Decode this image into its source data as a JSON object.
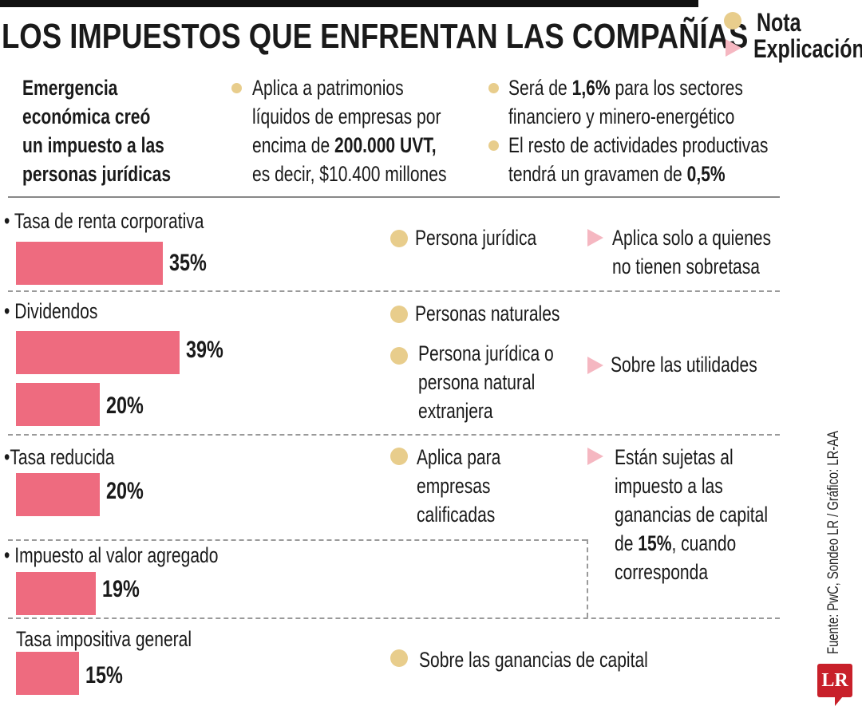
{
  "title": "LOS IMPUESTOS QUE ENFRENTAN LAS COMPAÑÍAS",
  "legend": {
    "note": "Nota",
    "explanation": "Explicación",
    "note_color": "#e8cd8c",
    "explanation_color": "#f5b7c1"
  },
  "intro": {
    "heading": [
      "Emergencia",
      "económica creó",
      "un impuesto a las",
      "personas jurídicas"
    ],
    "col2": {
      "l1": "Aplica a patrimonios",
      "l2": "líquidos de empresas por",
      "l3a": "encima de ",
      "l3b": "200.000 UVT,",
      "l4": "es decir, $10.400 millones"
    },
    "col3": {
      "l1a": "Será de ",
      "l1b": "1,6%",
      "l1c": " para los sectores",
      "l2": "financiero y minero-energético",
      "l3": "El resto de actividades productivas",
      "l4a": "tendrá un gravamen de ",
      "l4b": "0,5%"
    }
  },
  "rows": {
    "r1": {
      "label": "Tasa de renta corporativa",
      "note": "Persona jurídica",
      "expl": [
        "Aplica solo a quienes",
        "no tienen sobretasa"
      ]
    },
    "r2": {
      "label": "Dividendos",
      "note1": "Personas naturales",
      "note2": [
        "Persona jurídica o",
        "persona natural",
        "extranjera"
      ],
      "expl": "Sobre las utilidades"
    },
    "r3": {
      "label": "Tasa reducida",
      "note": [
        "Aplica para",
        "empresas",
        "calificadas"
      ],
      "expl": [
        "Están sujetas al",
        "impuesto a las",
        "ganancias de capital"
      ],
      "expl4a": "de ",
      "expl4b": "15%",
      "expl4c": ", cuando",
      "expl5": "corresponda"
    },
    "r4": {
      "label": "Impuesto al valor agregado"
    },
    "r5": {
      "label": "Tasa impositiva general",
      "note": "Sobre las ganancias de capital"
    }
  },
  "chart_data": {
    "type": "bar",
    "orientation": "horizontal",
    "bar_color": "#ee6b7f",
    "categories": [
      "Tasa de renta corporativa",
      "Dividendos",
      "Dividendos",
      "Tasa reducida",
      "Impuesto al valor agregado",
      "Tasa impositiva general"
    ],
    "values": [
      35,
      39,
      20,
      20,
      19,
      15
    ],
    "labels": [
      "35%",
      "39%",
      "20%",
      "20%",
      "19%",
      "15%"
    ]
  },
  "source": "Fuente: PwC, Sondeo LR / Gráfico: LR-AA",
  "logo": "LR"
}
